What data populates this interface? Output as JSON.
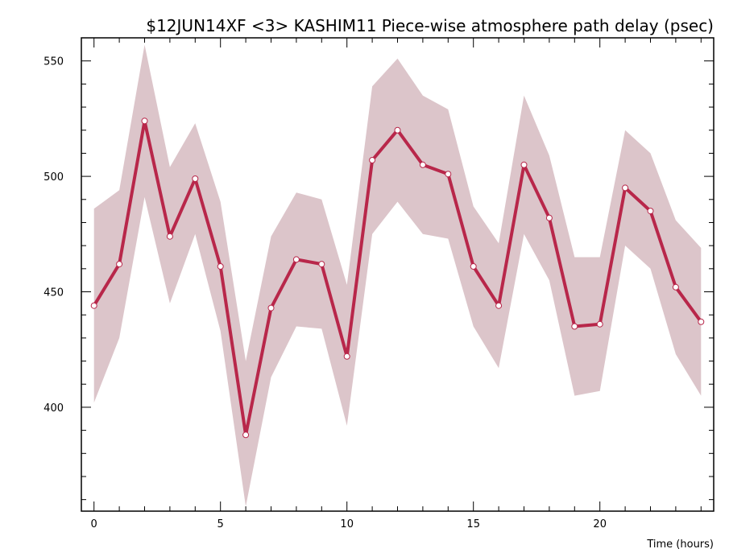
{
  "chart_data": {
    "type": "line",
    "title": "$12JUN14XF <3>   KASHIM11  Piece-wise atmosphere path delay (psec)",
    "xlabel": "Time (hours)",
    "ylabel": "",
    "xlim": [
      -0.5,
      24.5
    ],
    "ylim": [
      355,
      560
    ],
    "xticks": [
      0,
      5,
      10,
      15,
      20
    ],
    "yticks": [
      400,
      450,
      500,
      550
    ],
    "grid": false,
    "series": [
      {
        "x": [
          0,
          1,
          2,
          3,
          4,
          5,
          6,
          7,
          8,
          9,
          10,
          11,
          12,
          13,
          14,
          15,
          16,
          17,
          18,
          19,
          20,
          21,
          22,
          23,
          24
        ],
        "values": [
          444,
          462,
          524,
          474,
          499,
          461,
          388,
          443,
          464,
          462,
          422,
          507,
          520,
          505,
          501,
          461,
          444,
          505,
          482,
          435,
          436,
          495,
          485,
          452,
          437
        ],
        "upper": [
          486,
          494,
          557,
          504,
          523,
          489,
          420,
          474,
          493,
          490,
          453,
          539,
          551,
          535,
          529,
          487,
          471,
          535,
          509,
          465,
          465,
          520,
          510,
          481,
          469
        ],
        "lower": [
          402,
          430,
          491,
          445,
          475,
          433,
          357,
          413,
          435,
          434,
          392,
          475,
          489,
          475,
          473,
          435,
          417,
          475,
          455,
          405,
          407,
          470,
          460,
          423,
          405
        ]
      }
    ],
    "colors": {
      "line": "#b8274a",
      "band": "#dcc5ca",
      "marker_fill": "#ffffff",
      "axes": "#000000"
    }
  }
}
